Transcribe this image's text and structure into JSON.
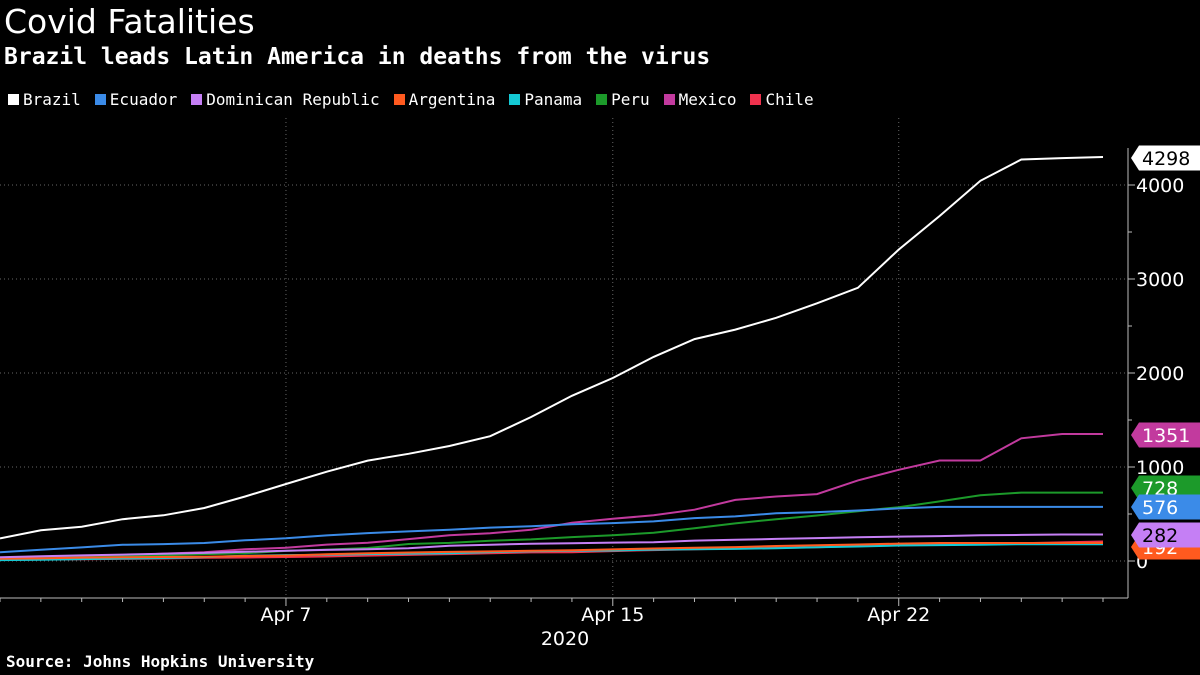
{
  "header": {
    "title": "Covid Fatalities",
    "subtitle": "Brazil leads Latin America in deaths from the virus"
  },
  "footer": {
    "source": "Source: Johns Hopkins University"
  },
  "chart_data": {
    "type": "line",
    "x": [
      "Mar 31",
      "Apr 1",
      "Apr 2",
      "Apr 3",
      "Apr 4",
      "Apr 5",
      "Apr 6",
      "Apr 7",
      "Apr 8",
      "Apr 9",
      "Apr 10",
      "Apr 11",
      "Apr 12",
      "Apr 13",
      "Apr 14",
      "Apr 15",
      "Apr 16",
      "Apr 17",
      "Apr 18",
      "Apr 19",
      "Apr 20",
      "Apr 21",
      "Apr 22",
      "Apr 23",
      "Apr 24",
      "Apr 25",
      "Apr 26",
      "Apr 27"
    ],
    "x_tick_labels": [
      "Apr 7",
      "Apr 15",
      "Apr 22"
    ],
    "x_year_label": "2020",
    "y_ticks": [
      0,
      1000,
      2000,
      3000,
      4000
    ],
    "y_tick_labels": [
      "0",
      "1000",
      "2000",
      "3000",
      "4000"
    ],
    "ylim": [
      -400,
      4500
    ],
    "grid": true,
    "legend_position": "top-left",
    "series": [
      {
        "name": "Brazil",
        "color": "#ffffff",
        "end_label": "4298",
        "values": [
          240,
          327,
          365,
          445,
          486,
          564,
          686,
          819,
          950,
          1068,
          1140,
          1223,
          1328,
          1532,
          1757,
          1947,
          2171,
          2361,
          2462,
          2587,
          2741,
          2906,
          3313,
          3670,
          4045,
          4271,
          4286,
          4298
        ]
      },
      {
        "name": "Ecuador",
        "color": "#3b8be8",
        "end_label": "576",
        "values": [
          93,
          120,
          145,
          172,
          180,
          191,
          220,
          242,
          272,
          297,
          315,
          333,
          355,
          369,
          390,
          403,
          421,
          456,
          474,
          507,
          520,
          537,
          560,
          576,
          576,
          576,
          576,
          576
        ]
      },
      {
        "name": "Dominican Republic",
        "color": "#c57ff5",
        "end_label": "282",
        "values": [
          40,
          51,
          60,
          68,
          77,
          86,
          98,
          108,
          118,
          126,
          135,
          163,
          173,
          183,
          189,
          196,
          200,
          217,
          226,
          235,
          244,
          253,
          260,
          265,
          273,
          278,
          282,
          282
        ]
      },
      {
        "name": "Argentina",
        "color": "#ff5a1f",
        "end_label": "192",
        "values": [
          23,
          28,
          36,
          39,
          43,
          46,
          53,
          57,
          71,
          82,
          90,
          97,
          102,
          108,
          115,
          123,
          133,
          141,
          148,
          160,
          167,
          176,
          185,
          192,
          192,
          192,
          192,
          192
        ]
      },
      {
        "name": "Panama",
        "color": "#14c9d4",
        "end_label": "",
        "values": [
          10,
          14,
          20,
          27,
          32,
          41,
          55,
          63,
          67,
          73,
          79,
          83,
          95,
          103,
          109,
          112,
          121,
          124,
          129,
          136,
          146,
          154,
          165,
          169,
          173,
          179,
          179,
          179
        ]
      },
      {
        "name": "Peru",
        "color": "#1c9a2a",
        "end_label": "728",
        "values": [
          24,
          30,
          38,
          51,
          61,
          73,
          83,
          107,
          121,
          138,
          181,
          193,
          216,
          230,
          254,
          274,
          300,
          348,
          400,
          445,
          484,
          530,
          572,
          634,
          700,
          728,
          728,
          728
        ]
      },
      {
        "name": "Mexico",
        "color": "#c23a9e",
        "end_label": "1351",
        "values": [
          29,
          37,
          50,
          60,
          79,
          94,
          125,
          141,
          174,
          194,
          233,
          273,
          296,
          332,
          406,
          449,
          486,
          546,
          650,
          686,
          712,
          857,
          970,
          1069,
          1069,
          1305,
          1351,
          1351
        ]
      },
      {
        "name": "Chile",
        "color": "#f0324e",
        "end_label": "",
        "values": [
          12,
          16,
          18,
          22,
          27,
          34,
          37,
          43,
          48,
          57,
          65,
          73,
          82,
          92,
          94,
          105,
          116,
          126,
          133,
          139,
          147,
          160,
          168,
          174,
          181,
          189,
          198,
          207
        ]
      }
    ]
  }
}
